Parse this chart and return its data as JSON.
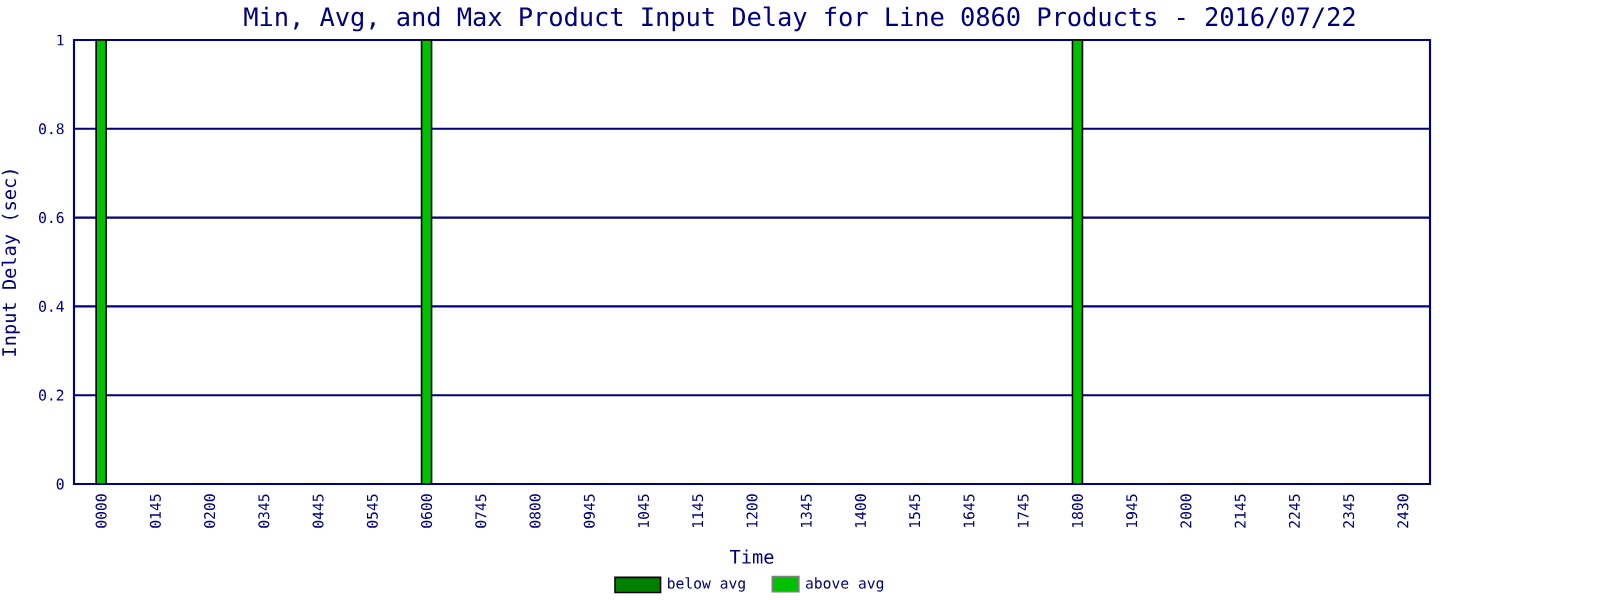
{
  "chart_data": {
    "type": "bar",
    "title": "Min, Avg, and Max Product Input Delay for Line 0860 Products - 2016/07/22",
    "xlabel": "Time",
    "ylabel": "Input Delay (sec)",
    "categories": [
      "0000",
      "0145",
      "0200",
      "0345",
      "0445",
      "0545",
      "0600",
      "0745",
      "0800",
      "0945",
      "1045",
      "1145",
      "1200",
      "1345",
      "1400",
      "1545",
      "1645",
      "1745",
      "1800",
      "1945",
      "2000",
      "2145",
      "2245",
      "2345",
      "2430"
    ],
    "series": [
      {
        "name": "below avg",
        "color": "#008000",
        "values": [
          null,
          null,
          null,
          null,
          null,
          null,
          null,
          null,
          null,
          null,
          null,
          null,
          null,
          null,
          null,
          null,
          null,
          null,
          null,
          null,
          null,
          null,
          null,
          null,
          null
        ]
      },
      {
        "name": "above avg",
        "color": "#00c000",
        "values": [
          1,
          null,
          null,
          null,
          null,
          null,
          1,
          null,
          null,
          null,
          null,
          null,
          null,
          null,
          null,
          null,
          null,
          null,
          1,
          null,
          null,
          null,
          null,
          null,
          null
        ]
      }
    ],
    "ylim": [
      0,
      1
    ],
    "yticks": [
      0,
      0.2,
      0.4,
      0.6,
      0.8,
      1
    ],
    "grid": "y",
    "legend": "bottom"
  }
}
